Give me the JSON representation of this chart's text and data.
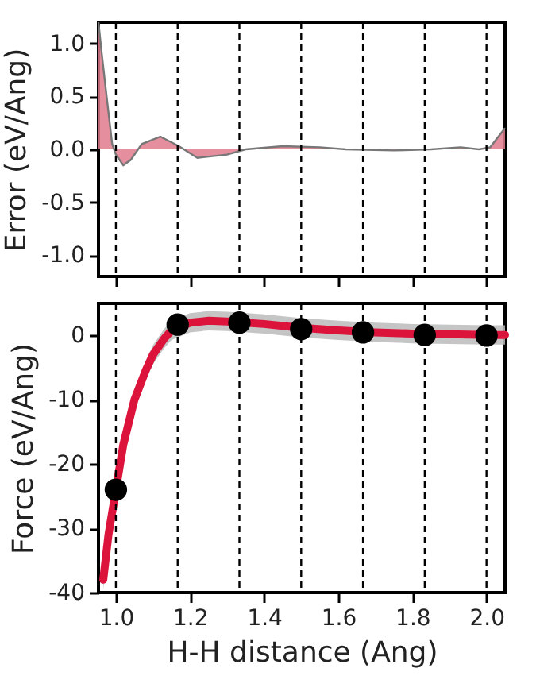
{
  "chart_data": [
    {
      "type": "area",
      "ylabel": "Error (eV/Ang)",
      "x": [
        0.953,
        0.962,
        0.975,
        0.99,
        1.0,
        1.02,
        1.04,
        1.07,
        1.12,
        1.17,
        1.22,
        1.3,
        1.35,
        1.45,
        1.55,
        1.62,
        1.75,
        1.85,
        1.93,
        1.98,
        2.01,
        2.05
      ],
      "values": [
        1.2,
        0.9,
        0.5,
        0.05,
        -0.05,
        -0.15,
        -0.1,
        0.05,
        0.12,
        0.03,
        -0.08,
        -0.05,
        0.0,
        0.03,
        0.02,
        0.0,
        -0.01,
        0.0,
        0.02,
        0.0,
        0.02,
        0.2
      ],
      "color": "#e07a8c",
      "xlim": [
        0.953,
        2.05
      ],
      "ylim": [
        -1.2,
        1.2
      ],
      "xticks": [
        1.0,
        1.2,
        1.4,
        1.6,
        1.8,
        2.0
      ],
      "yticks": [
        {
          "value": -1,
          "label": "-1.0"
        },
        -0.5,
        {
          "value": 0,
          "label": "0.0"
        },
        0.5,
        {
          "value": 1,
          "label": "1.0"
        }
      ],
      "tick_labels": "y",
      "ref_lines": [
        {
          "axis": "x",
          "value": 1.0,
          "line_style": "dashed"
        },
        {
          "axis": "x",
          "value": 1.1667,
          "line_style": "dashed"
        },
        {
          "axis": "x",
          "value": 1.3333,
          "line_style": "dashed"
        },
        {
          "axis": "x",
          "value": 1.5,
          "line_style": "dashed"
        },
        {
          "axis": "x",
          "value": 1.6667,
          "line_style": "dashed"
        },
        {
          "axis": "x",
          "value": 1.8333,
          "line_style": "dashed"
        },
        {
          "axis": "x",
          "value": 2.0,
          "line_style": "dashed"
        }
      ]
    },
    {
      "type": "line",
      "xlabel": "H-H distance (Ang)",
      "ylabel": "Force (eV/Ang)",
      "series": [
        {
          "color": "#dc143c",
          "marker": "none",
          "x": [
            0.966,
            0.98,
            1.0,
            1.02,
            1.05,
            1.08,
            1.1,
            1.13,
            1.15,
            1.2,
            1.25,
            1.3,
            1.4,
            1.5,
            1.6,
            1.7,
            1.8,
            1.9,
            2.0,
            2.05
          ],
          "values": [
            -38,
            -31,
            -24,
            -17,
            -10,
            -5.5,
            -3,
            -0.5,
            0.8,
            2.0,
            2.3,
            2.2,
            1.8,
            1.2,
            0.8,
            0.5,
            0.3,
            0.2,
            0.1,
            0.1
          ],
          "lower": [
            -39.5,
            -32.5,
            -25.5,
            -18.5,
            -11.5,
            -7,
            -4.5,
            -2,
            -0.7,
            0.5,
            0.8,
            0.7,
            0.3,
            -0.3,
            -0.7,
            -1,
            -1.2,
            -1.3,
            -1.4,
            -1.4
          ],
          "upper": [
            -36.5,
            -29.5,
            -22.5,
            -15.5,
            -8.5,
            -4,
            -1.5,
            1,
            2.3,
            3.5,
            3.8,
            3.7,
            3.3,
            2.7,
            2.3,
            2,
            1.8,
            1.7,
            1.6,
            1.6
          ]
        },
        {
          "type": "scatter",
          "marker": "circle",
          "color": "#000000",
          "x": [
            1.0,
            1.1667,
            1.3333,
            1.5,
            1.6667,
            1.8333,
            2.0
          ],
          "values": [
            -24,
            1.7,
            2.0,
            1.0,
            0.5,
            0.1,
            0.0
          ]
        }
      ],
      "line_style": "solid",
      "xlim": [
        0.953,
        2.05
      ],
      "ylim": [
        -40,
        5
      ],
      "xticks": [
        {
          "value": 1.0,
          "label": "1.0"
        },
        {
          "value": 1.2,
          "label": "1.2"
        },
        {
          "value": 1.4,
          "label": "1.4"
        },
        {
          "value": 1.6,
          "label": "1.6"
        },
        {
          "value": 1.8,
          "label": "1.8"
        },
        {
          "value": 2.0,
          "label": "2.0"
        }
      ],
      "yticks": [
        -40,
        -30,
        -20,
        -10,
        0
      ],
      "ref_lines": [
        {
          "axis": "x",
          "value": 1.0,
          "line_style": "dashed"
        },
        {
          "axis": "x",
          "value": 1.1667,
          "line_style": "dashed"
        },
        {
          "axis": "x",
          "value": 1.3333,
          "line_style": "dashed"
        },
        {
          "axis": "x",
          "value": 1.5,
          "line_style": "dashed"
        },
        {
          "axis": "x",
          "value": 1.6667,
          "line_style": "dashed"
        },
        {
          "axis": "x",
          "value": 1.8333,
          "line_style": "dashed"
        },
        {
          "axis": "x",
          "value": 2.0,
          "line_style": "dashed"
        }
      ]
    }
  ]
}
